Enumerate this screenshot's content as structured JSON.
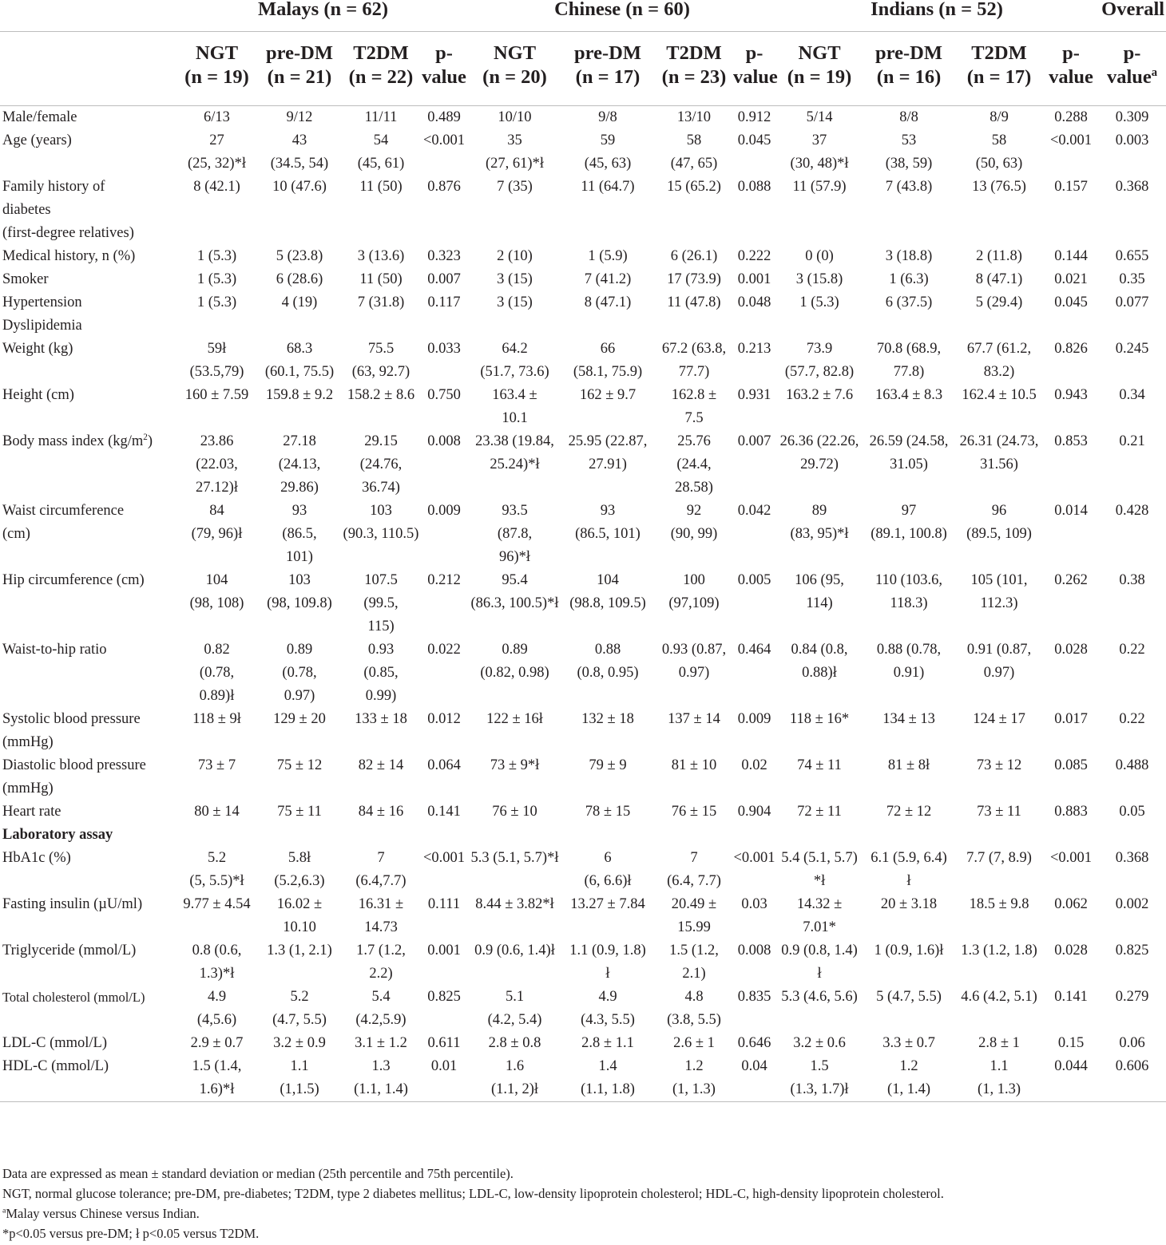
{
  "group_headers": [
    {
      "label": "",
      "span": 1
    },
    {
      "label": "Malays (n = 62)",
      "span": 4
    },
    {
      "label": "Chinese (n = 60)",
      "span": 4
    },
    {
      "label": "Indians (n = 52)",
      "span": 4
    },
    {
      "label": "Overall",
      "span": 1
    }
  ],
  "column_headers": [
    "",
    "NGT\n(n = 19)",
    "pre-DM\n(n = 21)",
    "T2DM\n(n = 22)",
    "p-\nvalue",
    "NGT\n(n = 20)",
    "pre-DM\n(n = 17)",
    "T2DM\n(n = 23)",
    "p-\nvalue",
    "NGT\n(n = 19)",
    "pre-DM\n(n = 16)",
    "T2DM\n(n = 17)",
    "p-\nvalue",
    "p-\nvalue"
  ],
  "overall_pvalue_superscript": "a",
  "rows": [
    {
      "label": "Male/female",
      "cells": [
        "6/13",
        "9/12",
        "11/11",
        "0.489",
        "10/10",
        "9/8",
        "13/10",
        "0.912",
        "5/14",
        "8/8",
        "8/9",
        "0.288",
        "0.309"
      ]
    },
    {
      "label": "Age (years)",
      "cells": [
        "27\n(25, 32)*ł",
        "43\n(34.5, 54)",
        "54\n(45, 61)",
        "<0.001",
        "35\n(27, 61)*ł",
        "59\n(45, 63)",
        "58\n(47, 65)",
        "0.045",
        "37\n(30, 48)*ł",
        "53\n(38, 59)",
        "58\n(50, 63)",
        "<0.001",
        "0.003"
      ]
    },
    {
      "label": "Family history of\ndiabetes\n(first-degree relatives)",
      "cells": [
        "8 (42.1)",
        "10 (47.6)",
        "11 (50)",
        "0.876",
        "7 (35)",
        "11 (64.7)",
        "15 (65.2)",
        "0.088",
        "11 (57.9)",
        "7 (43.8)",
        "13 (76.5)",
        "0.157",
        "0.368"
      ]
    },
    {
      "label": "Medical history, n (%)\nSmoker\nHypertension\nDyslipidemia",
      "cells": [
        "1 (5.3)\n1 (5.3)\n1 (5.3)",
        "5 (23.8)\n6 (28.6)\n4 (19)",
        "3 (13.6)\n11 (50)\n7 (31.8)",
        "0.323\n0.007\n0.117",
        "2 (10)\n3 (15)\n3 (15)",
        "1 (5.9)\n7 (41.2)\n8 (47.1)",
        "6 (26.1)\n17 (73.9)\n11 (47.8)",
        "0.222\n0.001\n0.048",
        "0 (0)\n3 (15.8)\n1 (5.3)",
        "3 (18.8)\n1 (6.3)\n6 (37.5)",
        "2 (11.8)\n8 (47.1)\n5 (29.4)",
        "0.144\n0.021\n0.045",
        "0.655\n0.35\n0.077"
      ]
    },
    {
      "label": "Weight (kg)",
      "cells": [
        "59ł\n(53.5,79)",
        "68.3\n(60.1, 75.5)",
        "75.5\n(63, 92.7)",
        "0.033",
        "64.2\n(51.7, 73.6)",
        "66\n(58.1, 75.9)",
        "67.2 (63.8,\n77.7)",
        "0.213",
        "73.9\n(57.7, 82.8)",
        "70.8 (68.9,\n77.8)",
        "67.7 (61.2,\n83.2)",
        "0.826",
        "0.245"
      ]
    },
    {
      "label": "Height (cm)",
      "cells": [
        "160 ± 7.59",
        "159.8 ± 9.2",
        "158.2 ± 8.6",
        "0.750",
        "163.4 ±\n10.1",
        "162 ± 9.7",
        "162.8 ±\n7.5",
        "0.931",
        "163.2 ± 7.6",
        "163.4 ± 8.3",
        "162.4 ± 10.5",
        "0.943",
        "0.34"
      ]
    },
    {
      "label": "Body mass index (kg/m",
      "label_sup": "2",
      "label_tail": ")",
      "cells": [
        "23.86\n(22.03,\n27.12)ł",
        "27.18\n(24.13,\n29.86)",
        "29.15\n(24.76,\n36.74)",
        "0.008",
        "23.38 (19.84,\n25.24)*ł",
        "25.95 (22.87,\n27.91)",
        "25.76\n(24.4,\n28.58)",
        "0.007",
        "26.36 (22.26,\n29.72)",
        "26.59 (24.58,\n31.05)",
        "26.31 (24.73,\n31.56)",
        "0.853",
        "0.21"
      ]
    },
    {
      "label": "Waist circumference\n(cm)",
      "cells": [
        "84\n(79, 96)ł",
        "93\n(86.5,\n101)",
        "103\n(90.3, 110.5)",
        "0.009",
        "93.5\n(87.8,\n96)*ł",
        "93\n(86.5, 101)",
        "92\n(90, 99)",
        "0.042",
        "89\n(83, 95)*ł",
        "97\n(89.1, 100.8)",
        "96\n(89.5, 109)",
        "0.014",
        "0.428"
      ]
    },
    {
      "label": "Hip circumference (cm)",
      "cells": [
        "104\n(98, 108)",
        "103\n(98, 109.8)",
        "107.5\n(99.5,\n115)",
        "0.212",
        "95.4\n(86.3, 100.5)*ł",
        "104\n(98.8, 109.5)",
        "100\n(97,109)",
        "0.005",
        "106 (95,\n114)",
        "110 (103.6,\n118.3)",
        "105 (101,\n112.3)",
        "0.262",
        "0.38"
      ]
    },
    {
      "label": "Waist-to-hip ratio",
      "cells": [
        "0.82\n(0.78,\n0.89)ł",
        "0.89\n(0.78,\n0.97)",
        "0.93\n(0.85,\n0.99)",
        "0.022",
        "0.89\n(0.82, 0.98)",
        "0.88\n(0.8, 0.95)",
        "0.93 (0.87,\n0.97)",
        "0.464",
        "0.84 (0.8,\n0.88)ł",
        "0.88 (0.78,\n0.91)",
        "0.91 (0.87,\n0.97)",
        "0.028",
        "0.22"
      ]
    },
    {
      "label": "Systolic blood pressure\n(mmHg)",
      "cells": [
        "118 ± 9ł",
        "129 ± 20",
        "133 ± 18",
        "0.012",
        "122 ± 16ł",
        "132 ± 18",
        "137 ± 14",
        "0.009",
        "118 ± 16*",
        "134 ± 13",
        "124 ± 17",
        "0.017",
        "0.22"
      ]
    },
    {
      "label": "Diastolic blood pressure\n(mmHg)",
      "cells": [
        "73 ± 7",
        "75 ± 12",
        "82 ± 14",
        "0.064",
        "73 ± 9*ł",
        "79 ± 9",
        "81 ± 10",
        "0.02",
        "74 ± 11",
        "81 ± 8ł",
        "73 ± 12",
        "0.085",
        "0.488"
      ]
    },
    {
      "label": "Heart rate",
      "cells": [
        "80 ± 14",
        "75 ± 11",
        "84 ± 16",
        "0.141",
        "76 ± 10",
        "78 ± 15",
        "76 ± 15",
        "0.904",
        "72 ± 11",
        "72 ± 12",
        "73 ± 11",
        "0.883",
        "0.05"
      ]
    },
    {
      "label": "Laboratory assay",
      "category": true,
      "cells": []
    },
    {
      "label": "HbA1c (%)",
      "cells": [
        "5.2\n(5, 5.5)*ł",
        "5.8ł\n(5.2,6.3)",
        "7\n(6.4,7.7)",
        "<0.001",
        "5.3 (5.1, 5.7)*ł",
        "6\n(6, 6.6)ł",
        "7\n(6.4, 7.7)",
        "<0.001",
        "5.4 (5.1, 5.7)\n*ł",
        "6.1 (5.9, 6.4)\nł",
        "7.7 (7, 8.9)",
        "<0.001",
        "0.368"
      ]
    },
    {
      "label": "Fasting insulin (µU/ml)",
      "cells": [
        "9.77 ± 4.54",
        "16.02 ±\n10.10",
        "16.31 ±\n14.73",
        "0.111",
        "8.44 ± 3.82*ł",
        "13.27 ± 7.84",
        "20.49 ±\n15.99",
        "0.03",
        "14.32 ±\n7.01*",
        "20 ± 3.18",
        "18.5 ± 9.8",
        "0.062",
        "0.002"
      ]
    },
    {
      "label": "Triglyceride (mmol/L)",
      "cells": [
        "0.8 (0.6,\n1.3)*ł",
        "1.3 (1, 2.1)",
        "1.7 (1.2,\n2.2)",
        "0.001",
        "0.9 (0.6, 1.4)ł",
        "1.1 (0.9, 1.8)\nł",
        "1.5 (1.2,\n2.1)",
        "0.008",
        "0.9 (0.8, 1.4)\nł",
        "1 (0.9, 1.6)ł",
        "1.3 (1.2, 1.8)",
        "0.028",
        "0.825"
      ]
    },
    {
      "label": "Total cholesterol (mmol/L)",
      "small": true,
      "cells": [
        "4.9\n(4,5.6)",
        "5.2\n(4.7, 5.5)",
        "5.4\n(4.2,5.9)",
        "0.825",
        "5.1\n(4.2, 5.4)",
        "4.9\n(4.3, 5.5)",
        "4.8\n(3.8, 5.5)",
        "0.835",
        "5.3 (4.6, 5.6)",
        "5 (4.7, 5.5)",
        "4.6 (4.2, 5.1)",
        "0.141",
        "0.279"
      ]
    },
    {
      "label": "LDL-C (mmol/L)",
      "cells": [
        "2.9 ± 0.7",
        "3.2 ± 0.9",
        "3.1 ± 1.2",
        "0.611",
        "2.8 ± 0.8",
        "2.8 ± 1.1",
        "2.6 ± 1",
        "0.646",
        "3.2 ± 0.6",
        "3.3 ± 0.7",
        "2.8 ± 1",
        "0.15",
        "0.06"
      ]
    },
    {
      "label": "HDL-C (mmol/L)",
      "last": true,
      "cells": [
        "1.5 (1.4,\n1.6)*ł",
        "1.1\n(1,1.5)",
        "1.3\n(1.1, 1.4)",
        "0.01",
        "1.6\n(1.1, 2)ł",
        "1.4\n(1.1, 1.8)",
        "1.2\n(1, 1.3)",
        "0.04",
        "1.5\n(1.3, 1.7)ł",
        "1.2\n(1, 1.4)",
        "1.1\n(1, 1.3)",
        "0.044",
        "0.606"
      ]
    }
  ],
  "notes": {
    "data_expression": "Data are expressed as mean ± standard deviation or median (25th percentile and 75th percentile).",
    "abbreviations": "NGT, normal glucose tolerance; pre-DM, pre-diabetes; T2DM, type 2 diabetes mellitus; LDL-C, low-density lipoprotein cholesterol; HDL-C, high-density lipoprotein cholesterol.",
    "footnote_a_mark": "a",
    "footnote_a_text": "Malay versus Chinese versus Indian.",
    "footnote_symbols": "*p<0.05 versus pre-DM; ł p<0.05 versus T2DM."
  }
}
